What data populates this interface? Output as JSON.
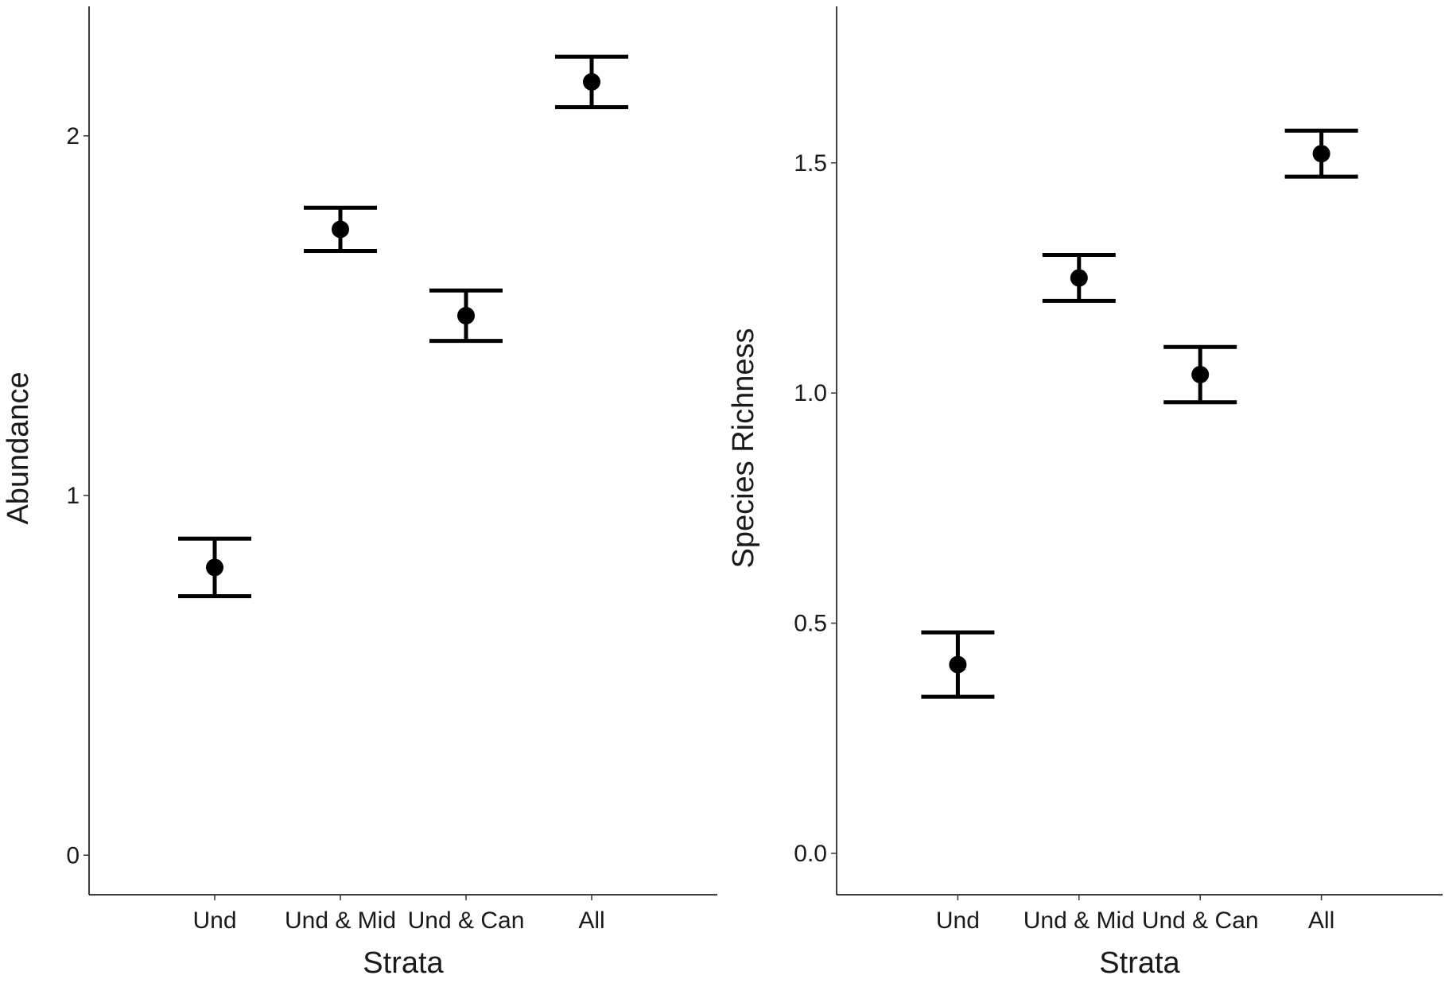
{
  "chart_data": [
    {
      "type": "scatter",
      "subtype": "point-with-errorbars",
      "xlabel": "Strata",
      "ylabel": "Abundance",
      "categories": [
        "Und",
        "Und & Mid",
        "Und & Can",
        "All"
      ],
      "values": [
        0.8,
        1.74,
        1.5,
        2.15
      ],
      "error_lower": [
        0.72,
        1.68,
        1.43,
        2.08
      ],
      "error_upper": [
        0.88,
        1.8,
        1.57,
        2.22
      ],
      "ylim": [
        -0.11,
        2.36
      ],
      "yticks": [
        0,
        1,
        2
      ],
      "ytick_labels": [
        "0",
        "1",
        "2"
      ],
      "grid": false,
      "point_color": "#000000"
    },
    {
      "type": "scatter",
      "subtype": "point-with-errorbars",
      "xlabel": "Strata",
      "ylabel": "Species Richness",
      "categories": [
        "Und",
        "Und & Mid",
        "Und & Can",
        "All"
      ],
      "values": [
        0.41,
        1.25,
        1.04,
        1.52
      ],
      "error_lower": [
        0.34,
        1.2,
        0.98,
        1.47
      ],
      "error_upper": [
        0.48,
        1.3,
        1.1,
        1.57
      ],
      "ylim": [
        -0.09,
        1.84
      ],
      "yticks": [
        0.0,
        0.5,
        1.0,
        1.5
      ],
      "ytick_labels": [
        "0.0",
        "0.5",
        "1.0",
        "1.5"
      ],
      "grid": false,
      "point_color": "#000000"
    }
  ]
}
